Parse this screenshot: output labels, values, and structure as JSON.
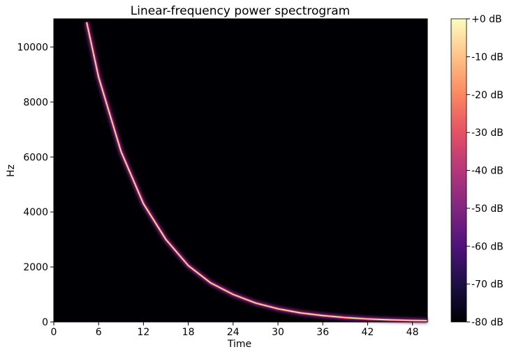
{
  "chart_data": {
    "type": "heatmap",
    "title": "Linear-frequency power spectrogram",
    "xlabel": "Time",
    "ylabel": "Hz",
    "xlim": [
      0,
      50
    ],
    "ylim": [
      0,
      11025
    ],
    "x_ticks": [
      0,
      6,
      12,
      18,
      24,
      30,
      36,
      42,
      48
    ],
    "x_tick_labels": [
      "0",
      "6",
      "12",
      "18",
      "24",
      "30",
      "36",
      "42",
      "48"
    ],
    "y_ticks": [
      0,
      2000,
      4000,
      6000,
      8000,
      10000
    ],
    "y_tick_labels": [
      "0",
      "2000",
      "4000",
      "6000",
      "8000",
      "10000"
    ],
    "background_level_db": -80,
    "sweep": {
      "description_of_shape": "exponential decay",
      "points": [
        {
          "time": 4.4,
          "hz": 10900
        },
        {
          "time": 6,
          "hz": 8900
        },
        {
          "time": 9,
          "hz": 6200
        },
        {
          "time": 12,
          "hz": 4300
        },
        {
          "time": 15,
          "hz": 3000
        },
        {
          "time": 18,
          "hz": 2050
        },
        {
          "time": 21,
          "hz": 1420
        },
        {
          "time": 24,
          "hz": 1000
        },
        {
          "time": 27,
          "hz": 690
        },
        {
          "time": 30,
          "hz": 480
        },
        {
          "time": 33,
          "hz": 330
        },
        {
          "time": 36,
          "hz": 230
        },
        {
          "time": 39,
          "hz": 160
        },
        {
          "time": 42,
          "hz": 110
        },
        {
          "time": 45,
          "hz": 76
        },
        {
          "time": 48,
          "hz": 53
        },
        {
          "time": 50,
          "hz": 40
        }
      ]
    },
    "colorbar": {
      "range_db": [
        -80,
        0
      ],
      "ticks": [
        0,
        -10,
        -20,
        -30,
        -40,
        -50,
        -60,
        -70,
        -80
      ],
      "tick_labels": [
        "+0 dB",
        "-10 dB",
        "-20 dB",
        "-30 dB",
        "-40 dB",
        "-50 dB",
        "-60 dB",
        "-70 dB",
        "-80 dB"
      ],
      "colormap": [
        "#000004",
        "#1c1044",
        "#4f127b",
        "#812581",
        "#b5367a",
        "#e55064",
        "#fb8761",
        "#fec287",
        "#fcfdbf"
      ]
    },
    "grid": false
  }
}
